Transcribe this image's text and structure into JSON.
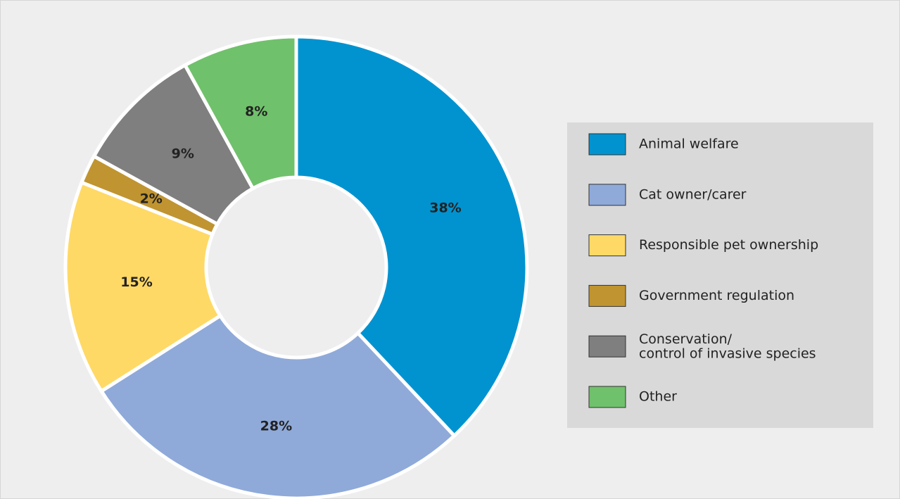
{
  "chart_data": {
    "type": "donut",
    "categories": [
      "Animal welfare",
      "Cat owner/carer",
      "Responsible pet ownership",
      "Government regulation",
      "Conservation/\ncontrol of invasive species",
      "Other"
    ],
    "values": [
      38,
      28,
      15,
      2,
      9,
      8
    ],
    "value_labels": [
      "38%",
      "28%",
      "15%",
      "2%",
      "9%",
      "8%"
    ],
    "colors": [
      "#0093d0",
      "#8faad9",
      "#ffd966",
      "#c09430",
      "#7f7f7f",
      "#70c16b"
    ],
    "legend": "right"
  }
}
